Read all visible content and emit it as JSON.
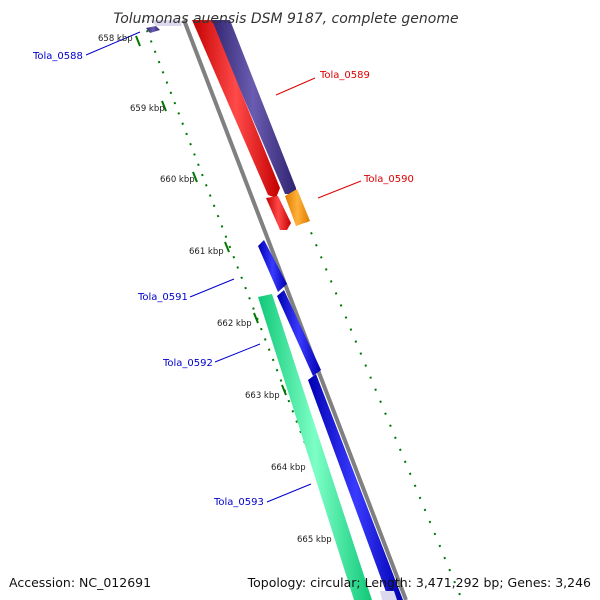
{
  "title": "Tolumonas auensis DSM 9187, complete genome",
  "footer": {
    "accession": "Accession: NC_012691",
    "summary": "Topology: circular; Length: 3,471,292 bp; Genes: 3,246"
  },
  "ticks": [
    "658 kbp",
    "659 kbp",
    "660 kbp",
    "661 kbp",
    "662 kbp",
    "663 kbp",
    "664 kbp",
    "665 kbp"
  ],
  "gene_labels": [
    {
      "text": "Tola_0588",
      "color": "#0000cc"
    },
    {
      "text": "Tola_0589",
      "color": "#dd0000"
    },
    {
      "text": "Tola_0590",
      "color": "#dd0000"
    },
    {
      "text": "Tola_0591",
      "color": "#0000cc"
    },
    {
      "text": "Tola_0592",
      "color": "#0000cc"
    },
    {
      "text": "Tola_0593",
      "color": "#0000cc"
    }
  ],
  "colors": {
    "backbone": "#808080",
    "ticks": "#007700",
    "gene_purple": "#4b3d8f",
    "gene_red": "#ff0000",
    "gene_orange": "#ff9900",
    "gene_blue": "#0000ee",
    "gene_green": "#22ee99"
  }
}
